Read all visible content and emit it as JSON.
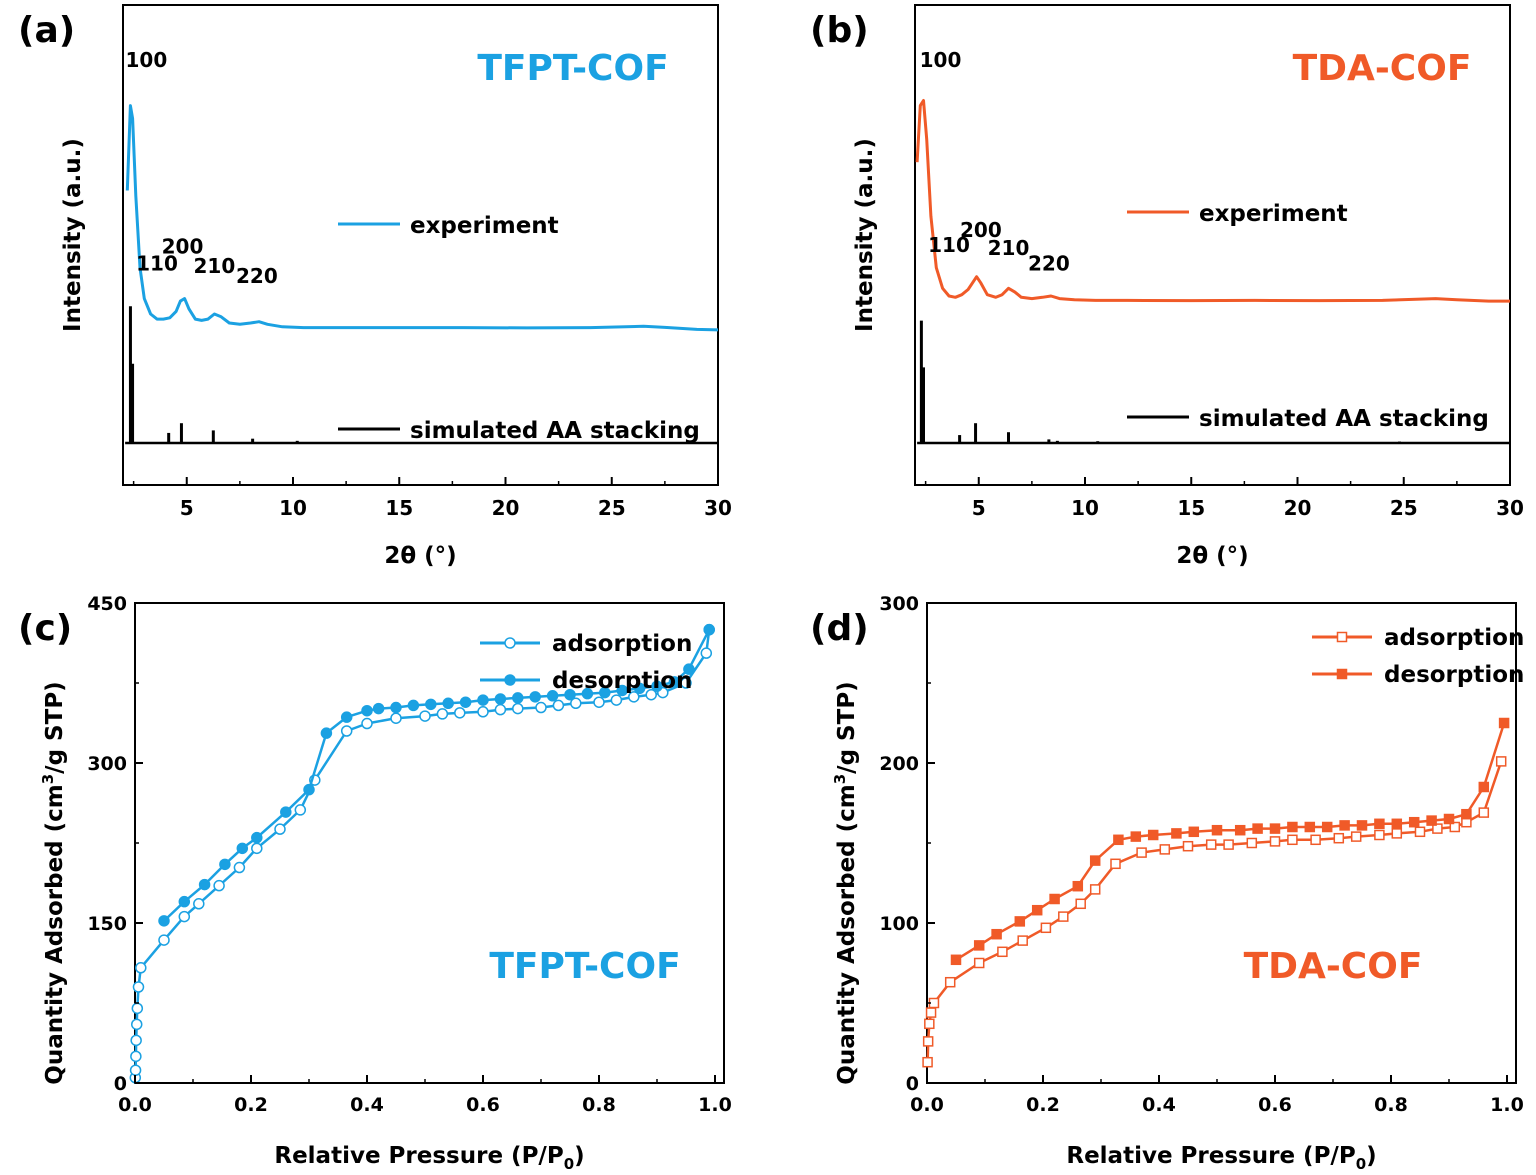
{
  "colors": {
    "blue": "#1BA1E2",
    "orange": "#F05A28",
    "black": "#000000"
  },
  "chart_data": [
    {
      "id": "a",
      "panel_label": "(a)",
      "type": "line",
      "title": "TFPT-COF",
      "title_color": "#1BA1E2",
      "xlabel": "2θ (°)",
      "ylabel": "Intensity (a.u.)",
      "xlim": [
        2,
        30
      ],
      "xticks": [
        5,
        10,
        15,
        20,
        25,
        30
      ],
      "y_ticks_shown": false,
      "grid": false,
      "legend_position": "right-inside",
      "series": [
        {
          "name": "experiment",
          "color": "#1BA1E2",
          "kind": "curve",
          "x": [
            2.2,
            2.35,
            2.45,
            2.6,
            2.8,
            3.0,
            3.3,
            3.6,
            3.9,
            4.2,
            4.5,
            4.7,
            4.9,
            5.1,
            5.4,
            5.7,
            6.0,
            6.3,
            6.6,
            7.0,
            7.5,
            8.0,
            8.4,
            8.8,
            9.5,
            10.5,
            12,
            15,
            18,
            21,
            24,
            26.5,
            27.5,
            29,
            30
          ],
          "y": [
            0.62,
            0.95,
            0.9,
            0.6,
            0.32,
            0.2,
            0.14,
            0.12,
            0.12,
            0.125,
            0.15,
            0.19,
            0.2,
            0.16,
            0.12,
            0.115,
            0.12,
            0.14,
            0.13,
            0.105,
            0.1,
            0.105,
            0.11,
            0.1,
            0.09,
            0.087,
            0.087,
            0.087,
            0.087,
            0.086,
            0.087,
            0.092,
            0.088,
            0.08,
            0.078
          ]
        },
        {
          "name": "simulated AA stacking",
          "color": "#000000",
          "kind": "sticks",
          "baseline": 0.0,
          "x": [
            2.35,
            2.45,
            4.15,
            4.75,
            6.25,
            8.1,
            10.2
          ],
          "y": [
            0.38,
            0.22,
            0.028,
            0.055,
            0.035,
            0.012,
            0.006
          ]
        }
      ],
      "peak_labels": [
        {
          "text": "100",
          "x": 3.1,
          "y": 1.1
        },
        {
          "text": "110",
          "x": 3.6,
          "y": 0.31
        },
        {
          "text": "200",
          "x": 4.8,
          "y": 0.375
        },
        {
          "text": "210",
          "x": 6.3,
          "y": 0.3
        },
        {
          "text": "220",
          "x": 8.3,
          "y": 0.26
        }
      ]
    },
    {
      "id": "b",
      "panel_label": "(b)",
      "type": "line",
      "title": "TDA-COF",
      "title_color": "#F05A28",
      "xlabel": "2θ (°)",
      "ylabel": "Intensity (a.u.)",
      "xlim": [
        2,
        30
      ],
      "xticks": [
        5,
        10,
        15,
        20,
        25,
        30
      ],
      "y_ticks_shown": false,
      "grid": false,
      "legend_position": "right-inside",
      "series": [
        {
          "name": "experiment",
          "color": "#F05A28",
          "kind": "curve",
          "x": [
            2.1,
            2.25,
            2.4,
            2.55,
            2.75,
            3.0,
            3.3,
            3.6,
            3.9,
            4.2,
            4.5,
            4.7,
            4.9,
            5.1,
            5.4,
            5.8,
            6.1,
            6.4,
            6.7,
            7.0,
            7.5,
            8.0,
            8.4,
            8.8,
            9.5,
            10.5,
            12,
            15,
            18,
            21,
            24,
            26.5,
            27.5,
            29,
            30
          ],
          "y": [
            0.73,
            0.95,
            0.97,
            0.82,
            0.52,
            0.32,
            0.24,
            0.21,
            0.205,
            0.215,
            0.235,
            0.26,
            0.285,
            0.26,
            0.215,
            0.205,
            0.215,
            0.24,
            0.225,
            0.205,
            0.2,
            0.205,
            0.21,
            0.2,
            0.195,
            0.193,
            0.193,
            0.192,
            0.193,
            0.192,
            0.193,
            0.2,
            0.195,
            0.19,
            0.19
          ]
        },
        {
          "name": "simulated AA stacking",
          "color": "#000000",
          "kind": "sticks",
          "baseline": 0.0,
          "x": [
            2.3,
            2.4,
            4.1,
            4.85,
            6.4,
            8.3,
            8.7,
            10.6,
            24.8
          ],
          "y": [
            0.34,
            0.21,
            0.022,
            0.055,
            0.03,
            0.01,
            0.006,
            0.005,
            0.004
          ]
        }
      ],
      "peak_labels": [
        {
          "text": "100",
          "x": 3.2,
          "y": 1.1
        },
        {
          "text": "110",
          "x": 3.6,
          "y": 0.38
        },
        {
          "text": "200",
          "x": 5.1,
          "y": 0.44
        },
        {
          "text": "210",
          "x": 6.4,
          "y": 0.37
        },
        {
          "text": "220",
          "x": 8.3,
          "y": 0.31
        }
      ]
    },
    {
      "id": "c",
      "panel_label": "(c)",
      "type": "line",
      "title": "TFPT-COF",
      "title_color": "#1BA1E2",
      "xlabel": "Relative Pressure (P/P0)",
      "ylabel": "Quantity Adsorbed (cm3/g STP)",
      "xlim": [
        0,
        1.0
      ],
      "ylim": [
        0,
        450
      ],
      "xticks": [
        0.0,
        0.2,
        0.4,
        0.6,
        0.8,
        1.0
      ],
      "xtick_labels": [
        "0.0",
        "0.2",
        "0.4",
        "0.6",
        "0.8",
        "1.0"
      ],
      "yticks": [
        0,
        150,
        300,
        450
      ],
      "grid": false,
      "legend_position": "top-right",
      "series": [
        {
          "name": "adsorption",
          "color": "#1BA1E2",
          "marker": "open-circle",
          "x": [
            0.0005,
            0.001,
            0.0015,
            0.002,
            0.003,
            0.004,
            0.006,
            0.01,
            0.05,
            0.085,
            0.11,
            0.145,
            0.18,
            0.21,
            0.25,
            0.285,
            0.31,
            0.365,
            0.4,
            0.45,
            0.5,
            0.53,
            0.56,
            0.6,
            0.63,
            0.66,
            0.7,
            0.73,
            0.76,
            0.8,
            0.83,
            0.86,
            0.89,
            0.91,
            0.95,
            0.985,
            0.99
          ],
          "y": [
            5,
            12,
            25,
            40,
            55,
            70,
            90,
            108,
            134,
            156,
            168,
            185,
            202,
            220,
            238,
            256,
            284,
            330,
            337,
            342,
            344,
            346,
            347,
            348,
            350,
            351,
            352,
            354,
            356,
            357,
            359,
            362,
            364,
            366,
            375,
            403,
            425
          ]
        },
        {
          "name": "desorption",
          "color": "#1BA1E2",
          "marker": "filled-circle",
          "x": [
            0.99,
            0.955,
            0.93,
            0.9,
            0.87,
            0.84,
            0.81,
            0.78,
            0.75,
            0.72,
            0.69,
            0.66,
            0.63,
            0.6,
            0.57,
            0.54,
            0.51,
            0.48,
            0.45,
            0.42,
            0.4,
            0.365,
            0.33,
            0.3,
            0.26,
            0.21,
            0.185,
            0.155,
            0.12,
            0.085,
            0.05
          ],
          "y": [
            425,
            388,
            376,
            372,
            370,
            368,
            366,
            365,
            364,
            363,
            362,
            361,
            360,
            359,
            357,
            356,
            355,
            354,
            352,
            351,
            349,
            343,
            328,
            275,
            254,
            230,
            220,
            205,
            186,
            170,
            152
          ]
        }
      ]
    },
    {
      "id": "d",
      "panel_label": "(d)",
      "type": "line",
      "title": "TDA-COF",
      "title_color": "#F05A28",
      "xlabel": "Relative Pressure (P/P0)",
      "ylabel": "Quantity Adsorbed (cm3/g STP)",
      "xlim": [
        0,
        1.0
      ],
      "ylim": [
        0,
        300
      ],
      "xticks": [
        0.0,
        0.2,
        0.4,
        0.6,
        0.8,
        1.0
      ],
      "xtick_labels": [
        "0.0",
        "0.2",
        "0.4",
        "0.6",
        "0.8",
        "1.0"
      ],
      "yticks": [
        0,
        100,
        200,
        300
      ],
      "grid": false,
      "legend_position": "top-right",
      "series": [
        {
          "name": "adsorption",
          "color": "#F05A28",
          "marker": "open-square",
          "x": [
            0.001,
            0.002,
            0.004,
            0.007,
            0.012,
            0.04,
            0.09,
            0.13,
            0.165,
            0.205,
            0.235,
            0.265,
            0.29,
            0.325,
            0.37,
            0.41,
            0.45,
            0.49,
            0.52,
            0.56,
            0.6,
            0.63,
            0.67,
            0.71,
            0.74,
            0.78,
            0.81,
            0.85,
            0.88,
            0.91,
            0.93,
            0.96,
            0.99
          ],
          "y": [
            13,
            26,
            37,
            44,
            50,
            63,
            75,
            82,
            89,
            97,
            104,
            112,
            121,
            137,
            144,
            146,
            148,
            149,
            149,
            150,
            151,
            152,
            152,
            153,
            154,
            155,
            156,
            157,
            159,
            160,
            163,
            169,
            201
          ]
        },
        {
          "name": "desorption",
          "color": "#F05A28",
          "marker": "filled-square",
          "x": [
            0.995,
            0.96,
            0.93,
            0.9,
            0.87,
            0.84,
            0.81,
            0.78,
            0.75,
            0.72,
            0.69,
            0.66,
            0.63,
            0.6,
            0.57,
            0.54,
            0.5,
            0.46,
            0.43,
            0.39,
            0.36,
            0.33,
            0.29,
            0.26,
            0.22,
            0.19,
            0.16,
            0.12,
            0.09,
            0.05
          ],
          "y": [
            225,
            185,
            168,
            165,
            164,
            163,
            162,
            162,
            161,
            161,
            160,
            160,
            160,
            159,
            159,
            158,
            158,
            157,
            156,
            155,
            154,
            152,
            139,
            123,
            115,
            108,
            101,
            93,
            86,
            77
          ]
        }
      ]
    }
  ]
}
